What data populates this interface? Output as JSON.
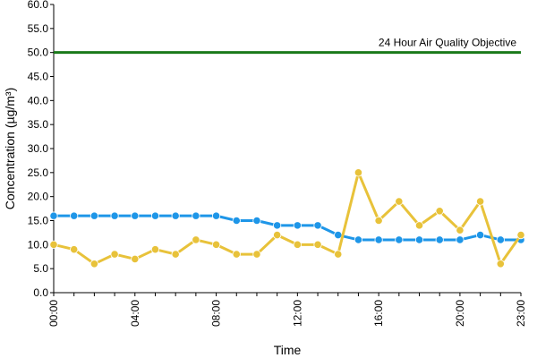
{
  "chart_data": {
    "type": "line",
    "title": "",
    "xlabel": "Time",
    "ylabel": "Concentration (µg/m³)",
    "ylim": [
      0,
      60
    ],
    "y_tick_labels": [
      "0.0",
      "5.0",
      "10.0",
      "15.0",
      "20.0",
      "25.0",
      "30.0",
      "35.0",
      "40.0",
      "45.0",
      "50.0",
      "55.0",
      "60.0"
    ],
    "x_tick_labels": [
      "00:00",
      "04:00",
      "08:00",
      "12:00",
      "16:00",
      "20:00",
      "23:00"
    ],
    "x_tick_hours": [
      0,
      4,
      8,
      12,
      16,
      20,
      23
    ],
    "x": [
      "00:00",
      "01:00",
      "02:00",
      "03:00",
      "04:00",
      "05:00",
      "06:00",
      "07:00",
      "08:00",
      "09:00",
      "10:00",
      "11:00",
      "12:00",
      "13:00",
      "14:00",
      "15:00",
      "16:00",
      "17:00",
      "18:00",
      "19:00",
      "20:00",
      "21:00",
      "22:00",
      "23:00"
    ],
    "grid": false,
    "legend": "none",
    "series": [
      {
        "color": "#1e96e8",
        "values": [
          16,
          16,
          16,
          16,
          16,
          16,
          16,
          16,
          16,
          15,
          15,
          14,
          14,
          14,
          12,
          11,
          11,
          11,
          11,
          11,
          11,
          12,
          11,
          11
        ]
      },
      {
        "color": "#e8c23a",
        "values": [
          10,
          9,
          6,
          8,
          7,
          9,
          8,
          11,
          10,
          8,
          8,
          12,
          10,
          10,
          8,
          25,
          15,
          19,
          14,
          17,
          13,
          19,
          6,
          12
        ]
      }
    ],
    "reference_line": {
      "value": 50,
      "label": "24 Hour Air Quality Objective",
      "color": "#1a7a1a"
    }
  }
}
